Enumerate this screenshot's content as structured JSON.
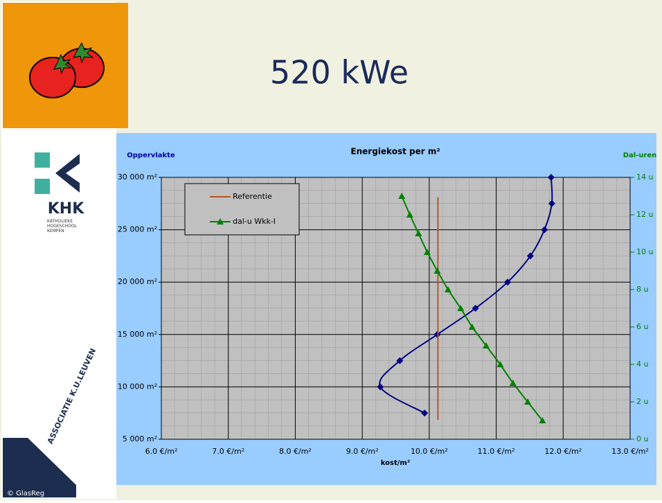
{
  "slide": {
    "title": "520 kWe",
    "logos": {
      "khk": "KHK",
      "khk_sub": "KATHOLIEKE HOGESCHOOL KEMPEN",
      "association": "ASSOCIATIE K.U.LEUVEN",
      "copyright": "© GlasReg"
    }
  },
  "chart_data": {
    "type": "line",
    "title": "Energiekost per m²",
    "xlabel": "kost/m²",
    "ylabel": "Oppervlakte",
    "y2label": "Dal-uren",
    "xlim": [
      6,
      13
    ],
    "xticks": [
      {
        "value": 6,
        "label": "6.0 €/m²"
      },
      {
        "value": 7,
        "label": "7.0 €/m²"
      },
      {
        "value": 8,
        "label": "8.0 €/m²"
      },
      {
        "value": 9,
        "label": "9.0 €/m²"
      },
      {
        "value": 10,
        "label": "10.0 €/m²"
      },
      {
        "value": 11,
        "label": "11.0 €/m²"
      },
      {
        "value": 12,
        "label": "12.0 €/m²"
      },
      {
        "value": 13,
        "label": "13.0 €/m²"
      }
    ],
    "ylim": [
      5000,
      30000
    ],
    "yticks": [
      {
        "value": 5000,
        "label": "5 000 m²"
      },
      {
        "value": 10000,
        "label": "10 000 m²"
      },
      {
        "value": 15000,
        "label": "15 000 m²"
      },
      {
        "value": 20000,
        "label": "20 000 m²"
      },
      {
        "value": 25000,
        "label": "25 000 m²"
      },
      {
        "value": 30000,
        "label": "30 000 m²"
      }
    ],
    "y2lim": [
      0,
      14
    ],
    "y2ticks": [
      {
        "value": 0,
        "label": "0 u"
      },
      {
        "value": 2,
        "label": "2 u"
      },
      {
        "value": 4,
        "label": "4 u"
      },
      {
        "value": 6,
        "label": "6 u"
      },
      {
        "value": 8,
        "label": "8 u"
      },
      {
        "value": 10,
        "label": "10 u"
      },
      {
        "value": 12,
        "label": "12 u"
      },
      {
        "value": 14,
        "label": "14 u"
      }
    ],
    "grid": true,
    "legend": "top-left",
    "series": [
      {
        "color": "#000080",
        "marker": "diamond",
        "smooth": true,
        "x": [
          9.93,
          9.27,
          9.56,
          10.12,
          10.69,
          11.17,
          11.51,
          11.72,
          11.83,
          11.82
        ],
        "values": [
          7500,
          10000,
          12500,
          15000,
          17500,
          20000,
          22500,
          25000,
          27500,
          30000
        ]
      },
      {
        "name": "Referentie",
        "color": "#b5561f",
        "x": [
          10.13,
          10.13
        ],
        "values": [
          6850,
          28100
        ]
      },
      {
        "name": "dal-u Wkk-I",
        "color": "#008000",
        "marker": "triangle",
        "axis": "y2",
        "x": [
          11.69,
          11.47,
          11.25,
          11.06,
          10.85,
          10.64,
          10.47,
          10.28,
          10.12,
          9.97,
          9.84,
          9.71,
          9.59
        ],
        "values": [
          1,
          2,
          3,
          4,
          5,
          6,
          7,
          8,
          9,
          10,
          11,
          12,
          13
        ]
      }
    ]
  }
}
